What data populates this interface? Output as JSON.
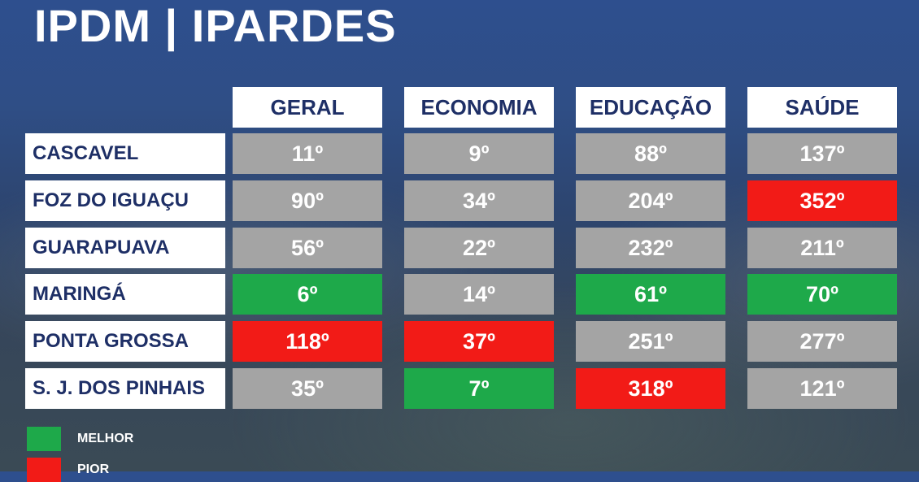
{
  "title": "IPDM | IPARDES",
  "columns": [
    "GERAL",
    "ECONOMIA",
    "EDUCAÇÃO",
    "SAÚDE"
  ],
  "rows": [
    {
      "city": "CASCAVEL",
      "values": [
        "11º",
        "9º",
        "88º",
        "137º"
      ],
      "status": [
        "neutral",
        "neutral",
        "neutral",
        "neutral"
      ]
    },
    {
      "city": "FOZ DO IGUAÇU",
      "values": [
        "90º",
        "34º",
        "204º",
        "352º"
      ],
      "status": [
        "neutral",
        "neutral",
        "neutral",
        "worst"
      ]
    },
    {
      "city": "GUARAPUAVA",
      "values": [
        "56º",
        "22º",
        "232º",
        "211º"
      ],
      "status": [
        "neutral",
        "neutral",
        "neutral",
        "neutral"
      ]
    },
    {
      "city": "MARINGÁ",
      "values": [
        "6º",
        "14º",
        "61º",
        "70º"
      ],
      "status": [
        "best",
        "neutral",
        "best",
        "best"
      ]
    },
    {
      "city": "PONTA GROSSA",
      "values": [
        "118º",
        "37º",
        "251º",
        "277º"
      ],
      "status": [
        "worst",
        "worst",
        "neutral",
        "neutral"
      ]
    },
    {
      "city": "S. J. DOS PINHAIS",
      "values": [
        "35º",
        "7º",
        "318º",
        "121º"
      ],
      "status": [
        "neutral",
        "best",
        "worst",
        "neutral"
      ]
    }
  ],
  "legend": [
    {
      "label": "MELHOR",
      "status": "best"
    },
    {
      "label": "PIOR",
      "status": "worst"
    }
  ],
  "colors": {
    "best": "#1ea94a",
    "worst": "#f21b17",
    "neutral": "#a4a4a4",
    "header_text": "#1e2f66"
  }
}
